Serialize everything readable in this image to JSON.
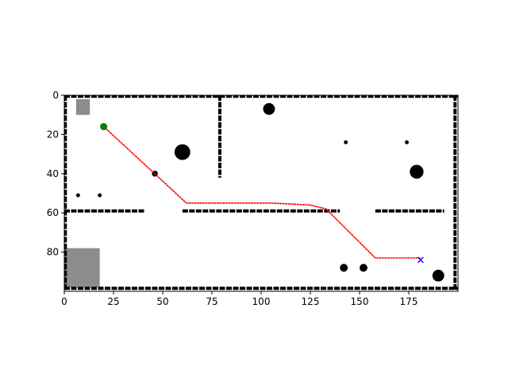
{
  "chart_data": {
    "type": "heatmap",
    "title": "",
    "xlabel": "",
    "ylabel": "",
    "xlim": [
      0,
      200
    ],
    "ylim": [
      100,
      0
    ],
    "x_ticks": [
      0,
      25,
      50,
      75,
      100,
      125,
      150,
      175
    ],
    "y_ticks": [
      0,
      20,
      40,
      60,
      80
    ],
    "grid": false,
    "occupancy_colors": {
      "free": "#ffffff",
      "occupied": "#000000",
      "unknown": "#8c8c8c"
    },
    "walls": [
      [
        [
          0,
          0.5
        ],
        [
          200,
          0.5
        ]
      ],
      [
        [
          0,
          98.5
        ],
        [
          200,
          98.5
        ]
      ],
      [
        [
          0.5,
          0
        ],
        [
          0.5,
          100
        ]
      ],
      [
        [
          198.5,
          0
        ],
        [
          198.5,
          100
        ]
      ],
      [
        [
          79,
          0
        ],
        [
          79,
          42
        ]
      ],
      [
        [
          0,
          59
        ],
        [
          41,
          59
        ]
      ],
      [
        [
          60,
          59
        ],
        [
          140,
          59
        ]
      ],
      [
        [
          158,
          59
        ],
        [
          193,
          59
        ]
      ]
    ],
    "obstacles": [
      {
        "x": 60,
        "y": 29,
        "r": 4
      },
      {
        "x": 104,
        "y": 7,
        "r": 3
      },
      {
        "x": 179,
        "y": 39,
        "r": 3.5
      },
      {
        "x": 46,
        "y": 40,
        "r": 1.5
      },
      {
        "x": 142,
        "y": 88,
        "r": 2
      },
      {
        "x": 152,
        "y": 88,
        "r": 2
      },
      {
        "x": 190,
        "y": 92,
        "r": 3
      },
      {
        "x": 143,
        "y": 24,
        "r": 1
      },
      {
        "x": 174,
        "y": 24,
        "r": 1
      },
      {
        "x": 18,
        "y": 51,
        "r": 1
      },
      {
        "x": 7,
        "y": 51,
        "r": 1
      }
    ],
    "unknown_regions": [
      {
        "x0": 0,
        "y0": 78,
        "x1": 18,
        "y1": 98
      },
      {
        "x0": 6,
        "y0": 2,
        "x1": 13,
        "y1": 10
      }
    ],
    "series": [
      {
        "type": "line",
        "color": "#ff0000",
        "x": [
          20,
          47,
          62,
          105,
          125,
          133,
          158,
          181
        ],
        "y": [
          16,
          41,
          55,
          55,
          56,
          58,
          83,
          83
        ]
      }
    ],
    "start": {
      "x": 20,
      "y": 16,
      "marker": "circle",
      "color": "#008000"
    },
    "goal": {
      "x": 181,
      "y": 84,
      "marker": "x",
      "color": "#0000ff"
    }
  }
}
